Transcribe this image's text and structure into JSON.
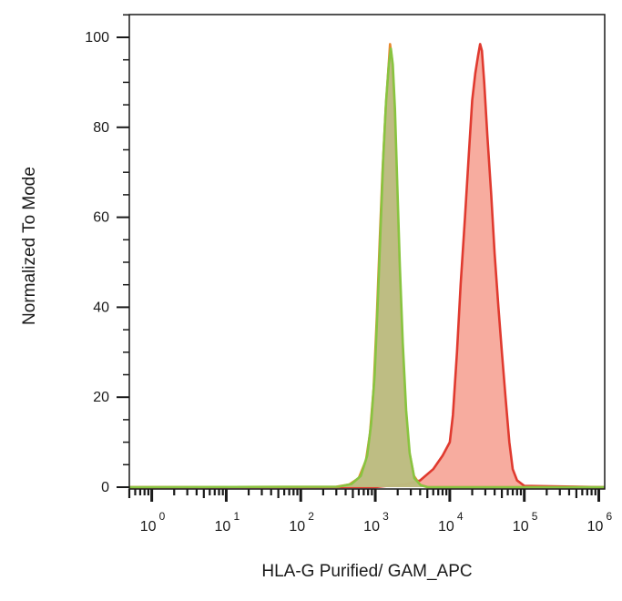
{
  "chart_data": {
    "type": "area",
    "title": "",
    "xlabel": "HLA-G Purified/ GAM_APC",
    "ylabel": "Normalized To Mode",
    "x_scale": "log",
    "xlim": [
      0.5,
      1200000
    ],
    "ylim": [
      0,
      100
    ],
    "y_ticks": [
      "0",
      "20",
      "40",
      "60",
      "80",
      "100"
    ],
    "y_tick_values": [
      0,
      20,
      40,
      60,
      80,
      100
    ],
    "x_tick_labels": [
      {
        "base": "10",
        "exp": "0",
        "value": 1
      },
      {
        "base": "10",
        "exp": "1",
        "value": 10
      },
      {
        "base": "10",
        "exp": "2",
        "value": 100
      },
      {
        "base": "10",
        "exp": "3",
        "value": 1000
      },
      {
        "base": "10",
        "exp": "4",
        "value": 10000
      },
      {
        "base": "10",
        "exp": "5",
        "value": 100000
      },
      {
        "base": "10",
        "exp": "6",
        "value": 1000000
      }
    ],
    "grid": false,
    "legend": "none",
    "series": [
      {
        "color": "#e03a2f",
        "fill": "#f7a89a",
        "points": [
          [
            0.5,
            0
          ],
          [
            1000,
            0
          ],
          [
            1500,
            0.3
          ],
          [
            2500,
            0.6
          ],
          [
            4000,
            1.5
          ],
          [
            6000,
            4
          ],
          [
            8000,
            7
          ],
          [
            10000,
            10
          ],
          [
            11000,
            16
          ],
          [
            12500,
            30
          ],
          [
            14000,
            45
          ],
          [
            16000,
            60
          ],
          [
            18000,
            74
          ],
          [
            20000,
            86
          ],
          [
            22000,
            92
          ],
          [
            24000,
            96
          ],
          [
            25500,
            98.5
          ],
          [
            27000,
            97
          ],
          [
            29000,
            90
          ],
          [
            32000,
            78
          ],
          [
            36000,
            65
          ],
          [
            40000,
            52
          ],
          [
            45000,
            40
          ],
          [
            50000,
            30
          ],
          [
            56000,
            20
          ],
          [
            63000,
            10
          ],
          [
            70000,
            4
          ],
          [
            80000,
            1.5
          ],
          [
            100000,
            0.3
          ],
          [
            1200000,
            0
          ]
        ]
      },
      {
        "color": "#e8892e",
        "fill": "#dd9975",
        "points": [
          [
            0.5,
            0
          ],
          [
            300,
            0.1
          ],
          [
            450,
            0.6
          ],
          [
            600,
            2
          ],
          [
            750,
            6
          ],
          [
            850,
            12
          ],
          [
            950,
            22
          ],
          [
            1050,
            38
          ],
          [
            1150,
            55
          ],
          [
            1250,
            70
          ],
          [
            1380,
            84
          ],
          [
            1500,
            93
          ],
          [
            1580,
            98.5
          ],
          [
            1680,
            95
          ],
          [
            1800,
            85
          ],
          [
            1950,
            68
          ],
          [
            2100,
            50
          ],
          [
            2300,
            33
          ],
          [
            2550,
            18
          ],
          [
            2850,
            8
          ],
          [
            3300,
            2.5
          ],
          [
            4000,
            0.5
          ],
          [
            5000,
            0
          ],
          [
            1200000,
            0
          ]
        ]
      },
      {
        "color": "#88c440",
        "fill": "#b7c181",
        "points": [
          [
            0.5,
            0
          ],
          [
            320,
            0.1
          ],
          [
            480,
            0.7
          ],
          [
            640,
            2.5
          ],
          [
            780,
            7
          ],
          [
            880,
            14
          ],
          [
            980,
            25
          ],
          [
            1080,
            41
          ],
          [
            1180,
            58
          ],
          [
            1280,
            73
          ],
          [
            1400,
            86
          ],
          [
            1520,
            94
          ],
          [
            1620,
            97.5
          ],
          [
            1720,
            94
          ],
          [
            1840,
            84
          ],
          [
            1980,
            67
          ],
          [
            2140,
            49
          ],
          [
            2340,
            32
          ],
          [
            2600,
            17
          ],
          [
            2900,
            7.5
          ],
          [
            3350,
            2
          ],
          [
            4100,
            0.4
          ],
          [
            5100,
            0
          ],
          [
            1200000,
            0
          ]
        ]
      }
    ]
  }
}
